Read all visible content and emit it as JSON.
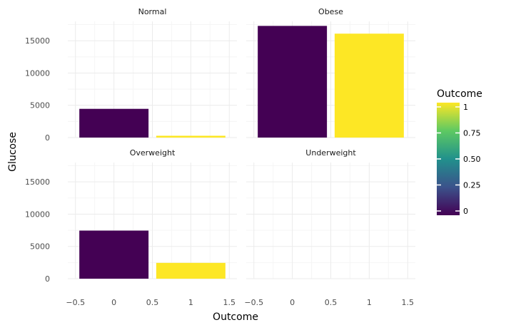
{
  "chart_data": {
    "type": "bar",
    "facet_by": "BMI category",
    "xlabel": "Outcome",
    "ylabel": "Glucose",
    "xlim": [
      -0.6,
      1.6
    ],
    "ylim": [
      0,
      18000
    ],
    "x_ticks": [
      "−0.5",
      "0",
      "0.5",
      "1",
      "1.5"
    ],
    "x_tick_values": [
      -0.5,
      0,
      0.5,
      1,
      1.5
    ],
    "y_ticks": [
      "0",
      "5000",
      "10000",
      "15000"
    ],
    "y_tick_values": [
      0,
      5000,
      10000,
      15000
    ],
    "grid": true,
    "panels": [
      {
        "name": "Normal",
        "bars": [
          {
            "outcome": 0,
            "value": 4450
          },
          {
            "outcome": 1,
            "value": 280
          }
        ]
      },
      {
        "name": "Obese",
        "bars": [
          {
            "outcome": 0,
            "value": 17300
          },
          {
            "outcome": 1,
            "value": 16100
          }
        ]
      },
      {
        "name": "Overweight",
        "bars": [
          {
            "outcome": 0,
            "value": 7450
          },
          {
            "outcome": 1,
            "value": 2450
          }
        ]
      },
      {
        "name": "Underweight",
        "bars": []
      }
    ],
    "legend": {
      "title": "Outcome",
      "placement": "right",
      "labels": [
        "1",
        "0.75",
        "0.50",
        "0.25",
        "0"
      ],
      "stops": [
        1,
        0.75,
        0.5,
        0.25,
        0
      ]
    },
    "colors": {
      "low": "#440154",
      "high": "#fde725",
      "gradient": [
        "#440154",
        "#3b528b",
        "#21918c",
        "#5ec962",
        "#fde725"
      ],
      "grid_major": "#ebebeb",
      "grid_minor": "#f5f5f5"
    }
  }
}
